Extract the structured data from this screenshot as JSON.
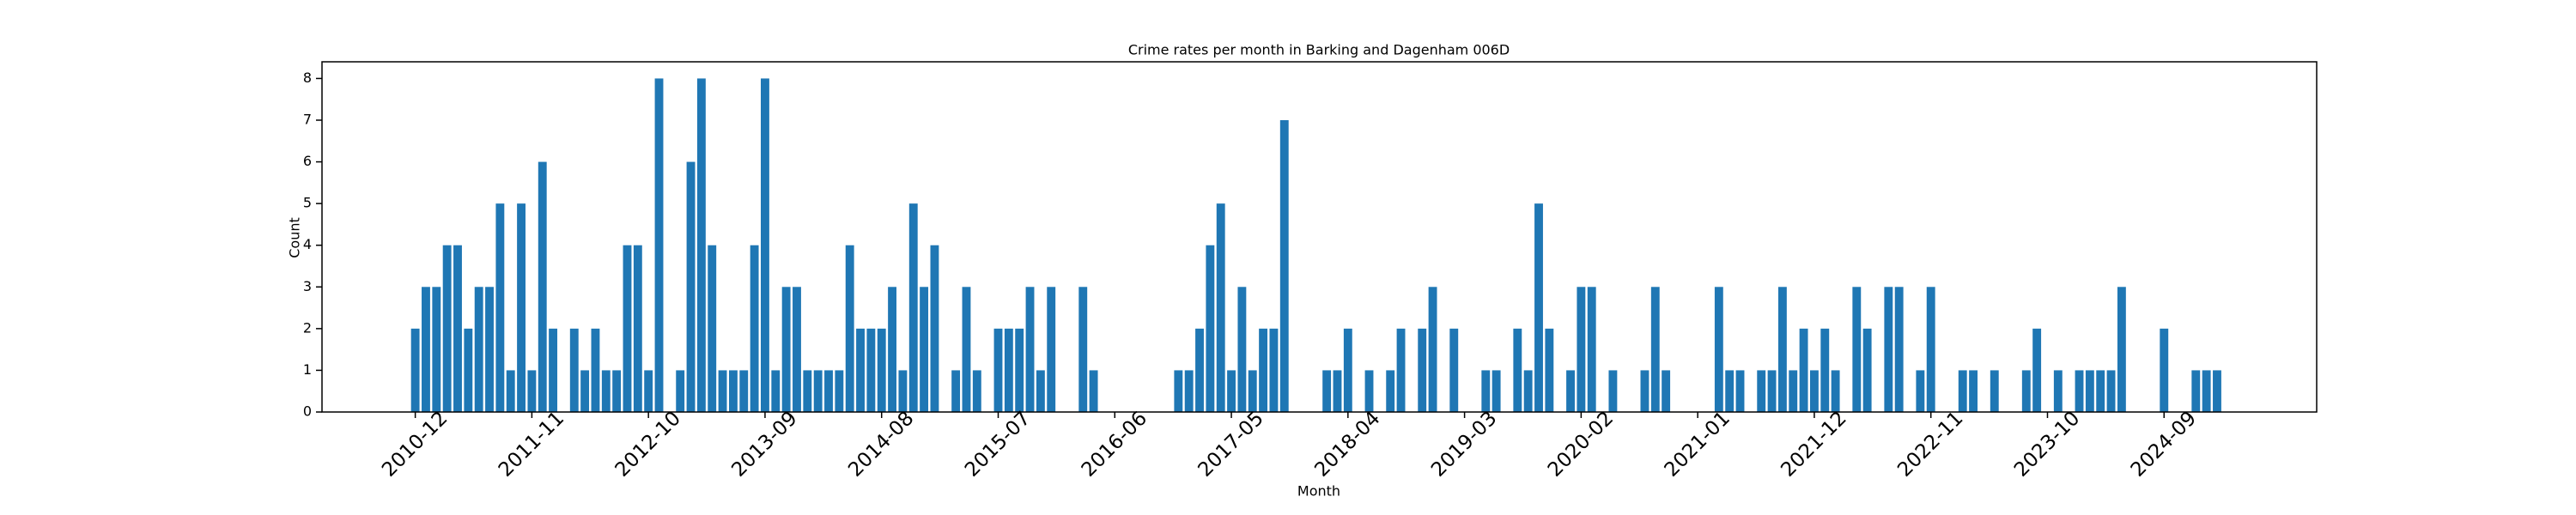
{
  "chart_data": {
    "type": "bar",
    "title": "Crime rates per month in Barking and Dagenham 006D",
    "x_label": "Month",
    "y_label": "Count",
    "color": "#1f77b4",
    "categories": [
      "2010-12",
      null,
      null,
      null,
      null,
      null,
      null,
      null,
      null,
      null,
      null,
      "2011-11",
      null,
      null,
      null,
      null,
      null,
      null,
      null,
      null,
      null,
      null,
      "2012-10",
      null,
      null,
      null,
      null,
      null,
      null,
      null,
      null,
      null,
      null,
      "2013-09",
      null,
      null,
      null,
      null,
      null,
      null,
      null,
      null,
      null,
      null,
      "2014-08",
      null,
      null,
      null,
      null,
      null,
      null,
      null,
      null,
      null,
      null,
      "2015-07",
      null,
      null,
      null,
      null,
      null,
      null,
      null,
      null,
      null,
      null,
      "2016-06",
      null,
      null,
      null,
      null,
      null,
      null,
      null,
      null,
      null,
      null,
      "2017-05",
      null,
      null,
      null,
      null,
      null,
      null,
      null,
      null,
      null,
      null,
      "2018-04",
      null,
      null,
      null,
      null,
      null,
      null,
      null,
      null,
      null,
      null,
      "2019-03",
      null,
      null,
      null,
      null,
      null,
      null,
      null,
      null,
      null,
      null,
      "2020-02",
      null,
      null,
      null,
      null,
      null,
      null,
      null,
      null,
      null,
      null,
      "2021-01",
      null,
      null,
      null,
      null,
      null,
      null,
      null,
      null,
      null,
      null,
      "2021-12",
      null,
      null,
      null,
      null,
      null,
      null,
      null,
      null,
      null,
      null,
      "2022-11",
      null,
      null,
      null,
      null,
      null,
      null,
      null,
      null,
      null,
      null,
      "2023-10",
      null,
      null,
      null,
      null,
      null,
      null,
      null,
      null,
      null,
      null,
      "2024-09",
      null,
      null,
      null,
      null,
      null
    ],
    "values": [
      2,
      3,
      3,
      4,
      4,
      2,
      3,
      3,
      5,
      1,
      5,
      1,
      6,
      2,
      0,
      2,
      1,
      2,
      1,
      1,
      4,
      4,
      1,
      8,
      0,
      1,
      6,
      8,
      4,
      1,
      1,
      1,
      4,
      8,
      1,
      3,
      3,
      1,
      1,
      1,
      1,
      4,
      2,
      2,
      2,
      3,
      1,
      5,
      3,
      4,
      0,
      1,
      3,
      1,
      0,
      2,
      2,
      2,
      3,
      1,
      3,
      0,
      0,
      3,
      1,
      0,
      0,
      0,
      0,
      0,
      0,
      0,
      1,
      1,
      2,
      4,
      5,
      1,
      3,
      1,
      2,
      2,
      7,
      0,
      0,
      0,
      1,
      1,
      2,
      0,
      1,
      0,
      1,
      2,
      0,
      2,
      3,
      0,
      2,
      0,
      0,
      1,
      1,
      0,
      2,
      1,
      5,
      2,
      0,
      1,
      3,
      3,
      0,
      1,
      0,
      0,
      1,
      3,
      1,
      0,
      0,
      0,
      0,
      3,
      1,
      1,
      0,
      1,
      1,
      3,
      1,
      2,
      1,
      2,
      1,
      0,
      3,
      2,
      0,
      3,
      3,
      0,
      1,
      3,
      0,
      0,
      1,
      1,
      0,
      1,
      0,
      0,
      1,
      2,
      0,
      1,
      0,
      1,
      1,
      1,
      1,
      3,
      0,
      0,
      0,
      2,
      0,
      0,
      1,
      1,
      1
    ],
    "xlim": [
      -8.8,
      179.4
    ],
    "ylim": [
      0,
      8.4
    ],
    "yticks": [
      0,
      1,
      2,
      3,
      4,
      5,
      6,
      7,
      8
    ]
  }
}
